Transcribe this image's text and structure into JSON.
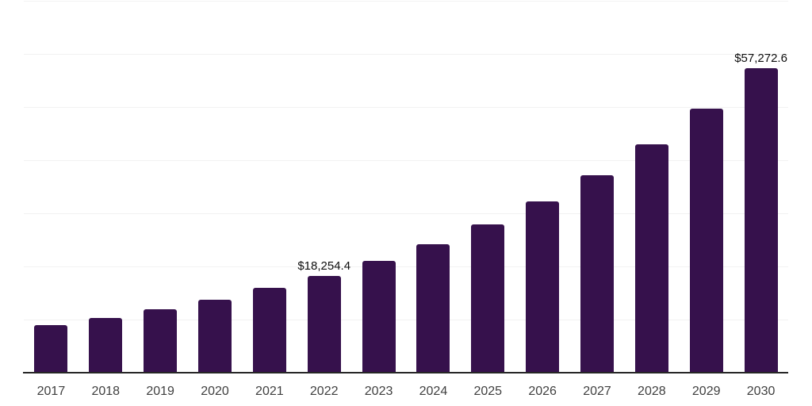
{
  "chart_data": {
    "type": "bar",
    "title": "",
    "xlabel": "",
    "ylabel": "",
    "categories": [
      "2017",
      "2018",
      "2019",
      "2020",
      "2021",
      "2022",
      "2023",
      "2024",
      "2025",
      "2026",
      "2027",
      "2028",
      "2029",
      "2030"
    ],
    "values": [
      8950,
      10300,
      11950,
      13750,
      15950,
      18254.4,
      21050,
      24200,
      27900,
      32250,
      37150,
      43000,
      49700,
      57272.6
    ],
    "value_labels": [
      {
        "category": "2022",
        "index": 5,
        "text": "$18,254.4"
      },
      {
        "category": "2030",
        "index": 13,
        "text": "$57,272.6"
      }
    ],
    "ylim": [
      0,
      70000
    ],
    "gridline_step": 10000,
    "grid": "horizontal-only",
    "legend": "none",
    "y_axis_labels_visible": false,
    "colors": {
      "bar": "#36114C",
      "gridline": "#f2f2f2",
      "axis_line": "#262626",
      "tick_label": "#404040",
      "value_label": "#0d0d0d",
      "background": "#ffffff"
    }
  }
}
